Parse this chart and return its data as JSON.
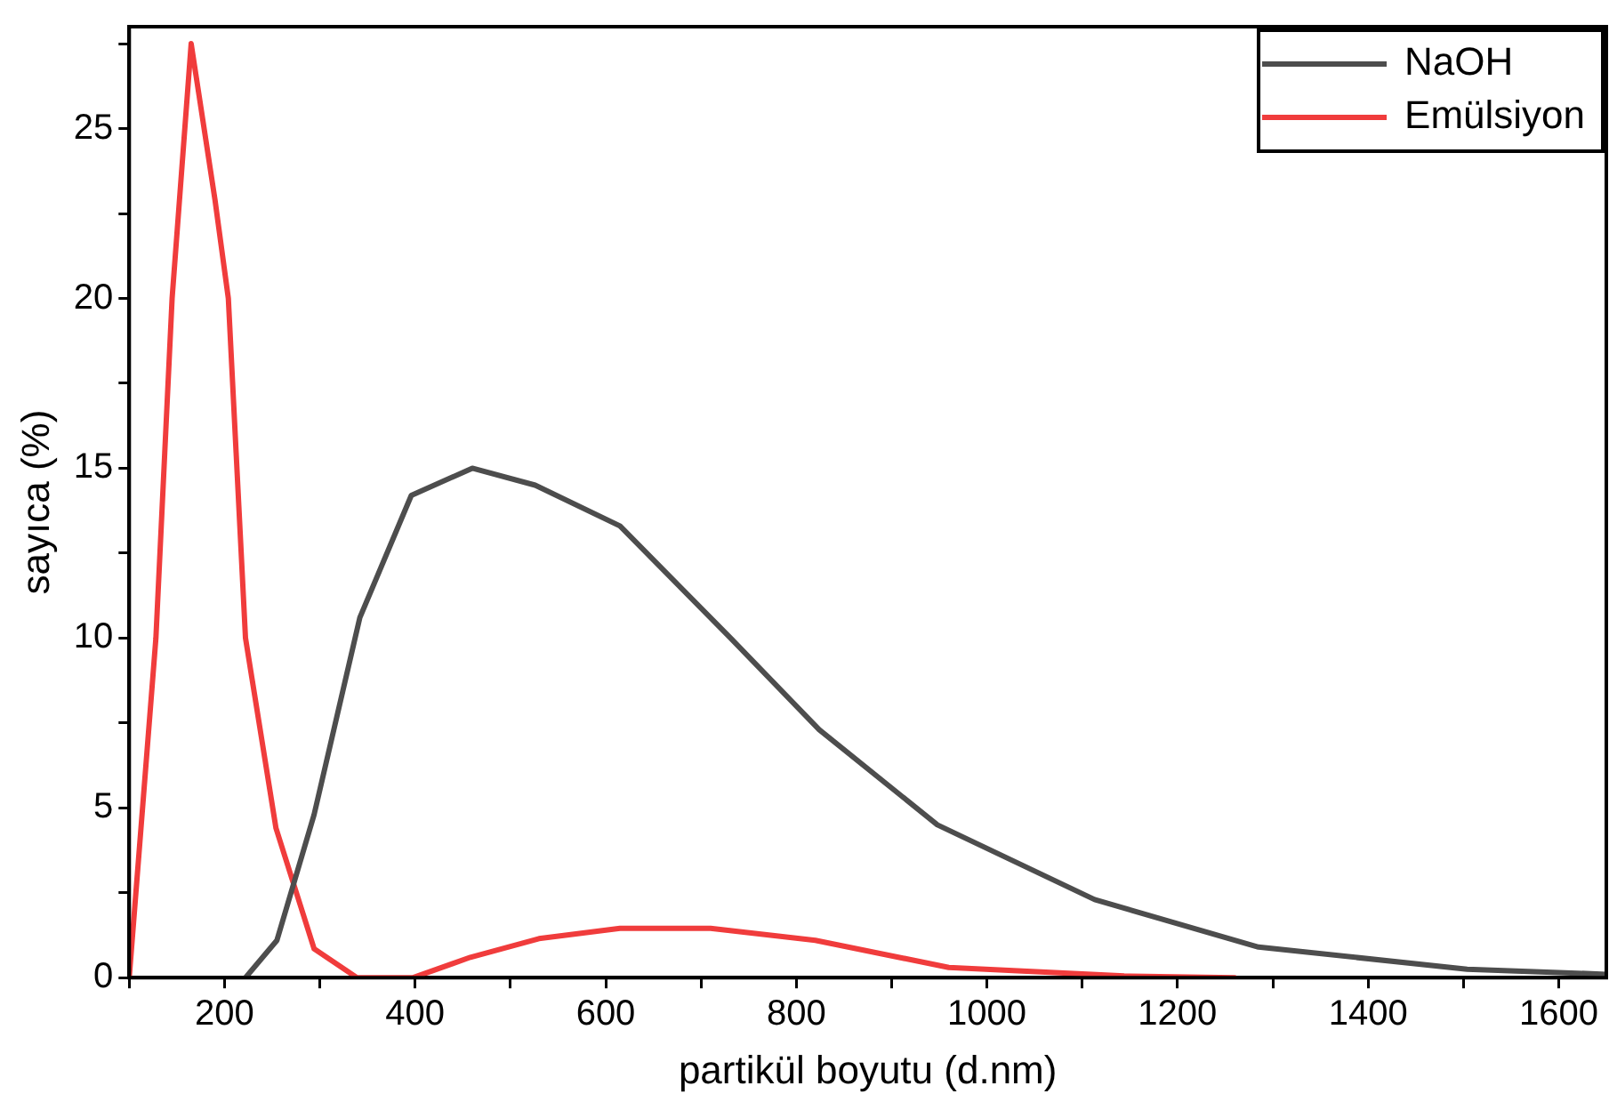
{
  "chart_data": {
    "type": "line",
    "xlabel": "partikül boyutu (d.nm)",
    "ylabel": "sayıca (%)",
    "xlim": [
      100,
      1650
    ],
    "ylim": [
      0,
      28
    ],
    "xticks": [
      {
        "value": 100,
        "label": null
      },
      200,
      {
        "value": 300,
        "label": null
      },
      400,
      {
        "value": 500,
        "label": null
      },
      600,
      {
        "value": 700,
        "label": null
      },
      800,
      {
        "value": 900,
        "label": null
      },
      1000,
      {
        "value": 1100,
        "label": null
      },
      1200,
      {
        "value": 1300,
        "label": null
      },
      1400,
      {
        "value": 1500,
        "label": null
      },
      1600
    ],
    "yticks": [
      0,
      {
        "value": 2.5,
        "label": null
      },
      5,
      {
        "value": 7.5,
        "label": null
      },
      10,
      {
        "value": 12.5,
        "label": null
      },
      15,
      {
        "value": 17.5,
        "label": null
      },
      20,
      {
        "value": 22.5,
        "label": null
      },
      25,
      {
        "value": 27.5,
        "label": null
      }
    ],
    "grid": false,
    "legend": "top right",
    "marker": "none",
    "line_style": "solid",
    "series": [
      {
        "name": "NaOH",
        "color": "#4d4d4d",
        "x": [
          222,
          255,
          294,
          342,
          396,
          460,
          526,
          615,
          731,
          824,
          948,
          1113,
          1285,
          1504,
          1650
        ],
        "values": [
          0,
          1.1,
          4.8,
          10.6,
          14.2,
          15.0,
          14.5,
          13.3,
          10.0,
          7.3,
          4.5,
          2.3,
          0.9,
          0.25,
          0.1
        ]
      },
      {
        "name": "Emülsiyon",
        "color": "#f03c3c",
        "x": [
          100,
          128,
          145,
          165,
          190,
          204,
          222,
          254,
          294,
          339,
          398,
          458,
          530,
          615,
          710,
          820,
          960,
          1144,
          1260
        ],
        "values": [
          0,
          10,
          20,
          27.5,
          22.9,
          20,
          10,
          4.4,
          0.85,
          0,
          0,
          0.6,
          1.15,
          1.45,
          1.45,
          1.1,
          0.3,
          0.05,
          0
        ]
      }
    ]
  }
}
